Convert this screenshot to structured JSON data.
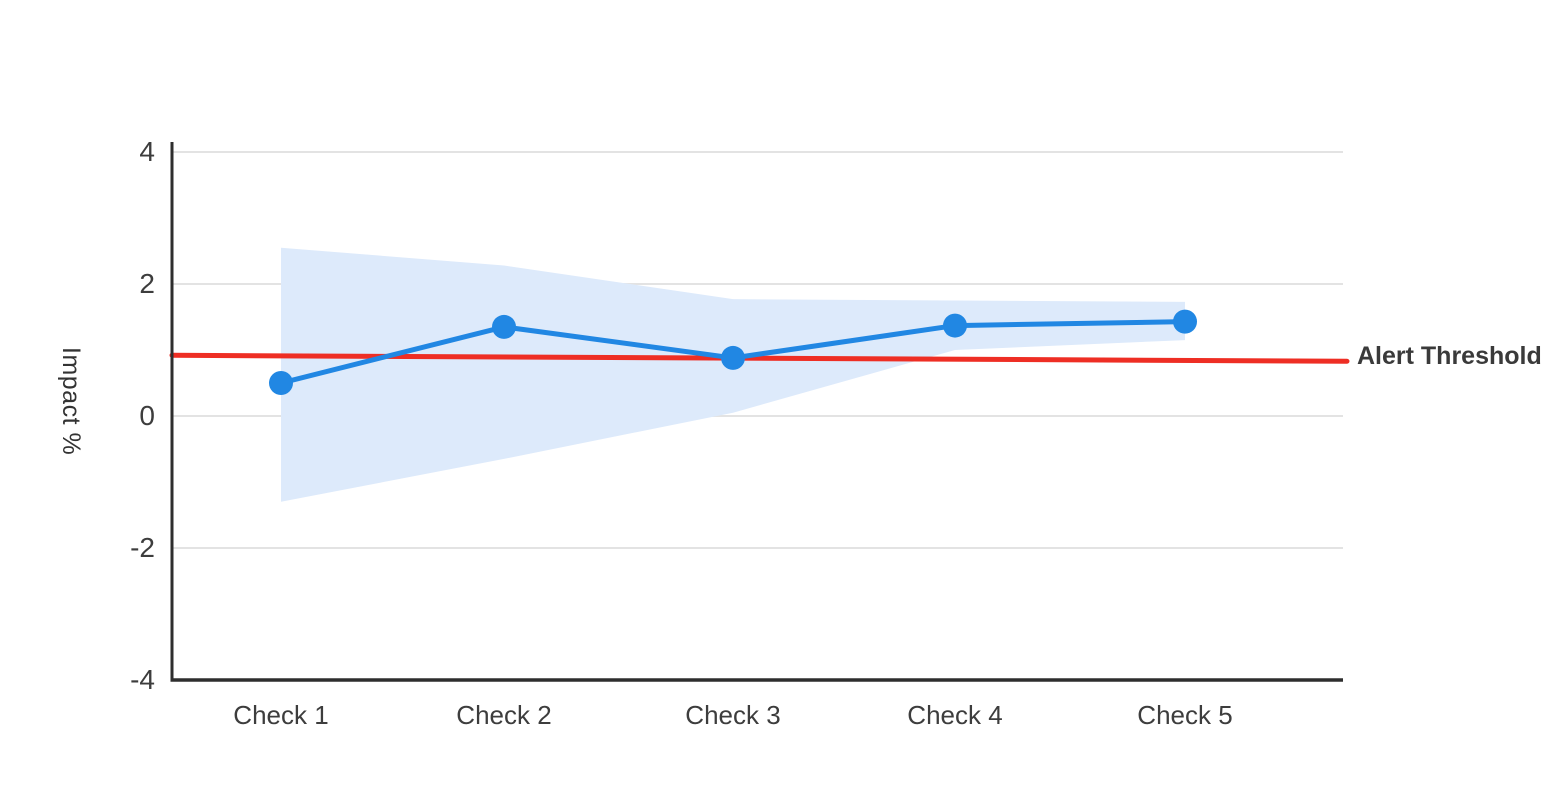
{
  "chart_data": {
    "type": "line",
    "title": "",
    "ylabel": "Impact %",
    "xlabel": "",
    "categories": [
      "Check 1",
      "Check 2",
      "Check 3",
      "Check 4",
      "Check 5"
    ],
    "series": [
      {
        "name": "Impact",
        "values": [
          0.5,
          1.35,
          0.88,
          1.37,
          1.43
        ],
        "color": "#2187e3",
        "marker": "circle"
      }
    ],
    "confidence_band": {
      "upper": [
        2.55,
        2.28,
        1.77,
        1.75,
        1.73
      ],
      "lower": [
        -1.3,
        -0.65,
        0.05,
        1.0,
        1.15
      ],
      "color": "#ddeafb"
    },
    "threshold": {
      "label": "Alert Threshold",
      "value_start": 0.92,
      "value_end": 0.83,
      "color": "#ee2e24"
    },
    "yticks": [
      4,
      2,
      0,
      -2,
      -4
    ],
    "ylim": [
      -4,
      4
    ],
    "grid": "horizontal",
    "legend_position": "none"
  },
  "colors": {
    "axis": "#2e2e2e",
    "grid": "#e3e3e3",
    "tick_text": "#3d3d3d",
    "label_text": "#333333",
    "threshold_text": "#3a3a3a",
    "background": "#ffffff"
  }
}
